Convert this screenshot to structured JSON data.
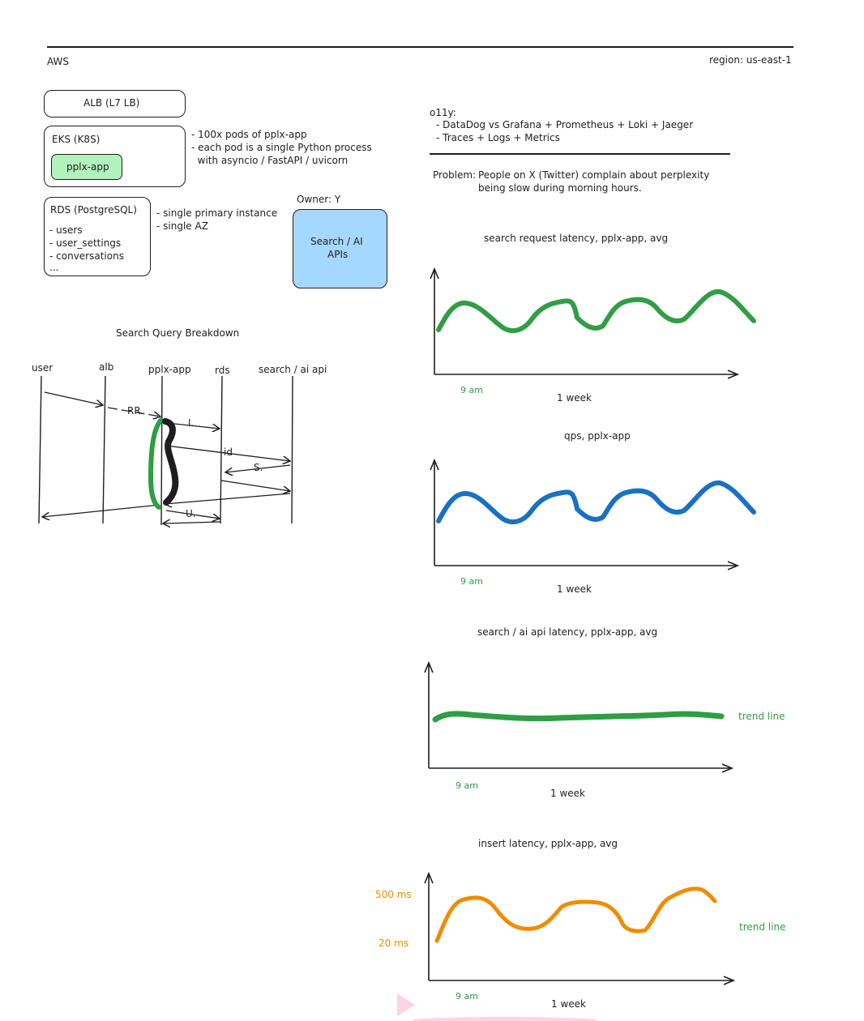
{
  "header": {
    "left": "AWS",
    "right": "region: us-east-1"
  },
  "architecture": {
    "alb": "ALB (L7 LB)",
    "eks": {
      "title": "EKS (K8S)",
      "pod": "pplx-app",
      "notes": [
        "- 100x pods of pplx-app",
        "- each pod is a single Python process",
        "  with asyncio / FastAPI / uvicorn"
      ]
    },
    "rds": {
      "title": "RDS (PostgreSQL)",
      "tables": [
        "- users",
        "- user_settings",
        "- conversations",
        "..."
      ],
      "notes": [
        "- single primary instance",
        "- single AZ"
      ]
    },
    "owner": "Owner: Y",
    "search_api": [
      "Search / AI",
      "APIs"
    ]
  },
  "sequence": {
    "title": "Search Query Breakdown",
    "actors": [
      "user",
      "alb",
      "pplx-app",
      "rds",
      "search / ai api"
    ],
    "labels": {
      "rr": "RR",
      "i": "I.",
      "id": "id",
      "s": "S.",
      "u": "U."
    }
  },
  "o11y": {
    "title": "o11y:",
    "items": [
      "- DataDog vs Grafana + Prometheus + Loki + Jaeger",
      "- Traces + Logs + Metrics"
    ]
  },
  "problem": {
    "label": "Problem:",
    "line1": "People on X (Twitter) complain about perplexity",
    "line2": "being slow during morning hours."
  },
  "charts_text": {
    "c1": {
      "title": "search request latency, pplx-app, avg",
      "tick": "9 am",
      "xlabel": "1 week"
    },
    "c2": {
      "title": "qps, pplx-app",
      "tick": "9 am",
      "xlabel": "1 week"
    },
    "c3": {
      "title": "search / ai api latency, pplx-app, avg",
      "tick": "9 am",
      "xlabel": "1 week",
      "annotation": "trend line"
    },
    "c4": {
      "title": "insert latency, pplx-app, avg",
      "tick": "9 am",
      "xlabel": "1 week",
      "annotation": "trend line",
      "y_high": "500 ms",
      "y_low": "20 ms"
    }
  },
  "colors": {
    "green": "#2f9e44",
    "blue": "#1971c2",
    "orange": "#f08c00",
    "pod_fill": "#b2f2bb",
    "api_fill": "#a5d8ff"
  }
}
